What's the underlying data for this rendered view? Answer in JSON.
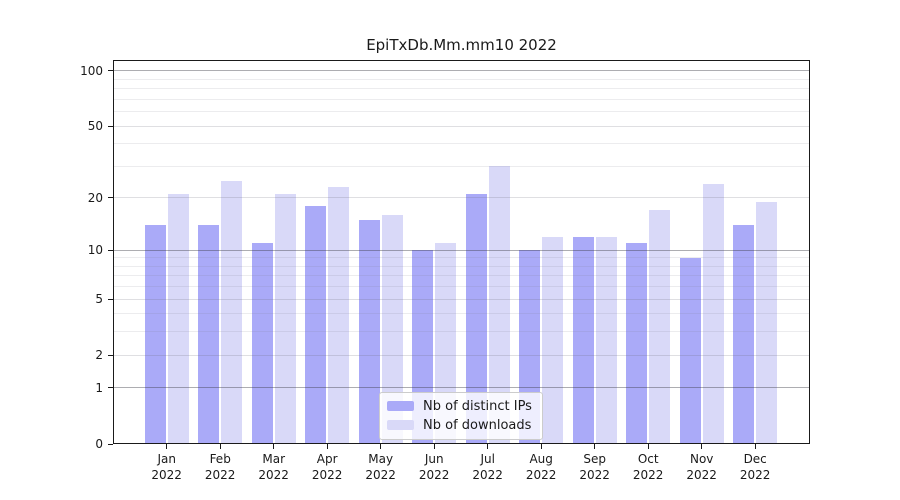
{
  "chart_data": {
    "type": "bar",
    "title": "EpiTxDb.Mm.mm10 2022",
    "year_label": "2022",
    "months": [
      "Jan",
      "Feb",
      "Mar",
      "Apr",
      "May",
      "Jun",
      "Jul",
      "Aug",
      "Sep",
      "Oct",
      "Nov",
      "Dec"
    ],
    "series": [
      {
        "name": "Nb of distinct IPs",
        "color": "#aaaaf8",
        "values": [
          14,
          14,
          11,
          18,
          15,
          10,
          21,
          10,
          12,
          11,
          9,
          14
        ]
      },
      {
        "name": "Nb of downloads",
        "color": "#d9d9f8",
        "values": [
          21,
          25,
          21,
          23,
          16,
          11,
          30,
          12,
          12,
          17,
          24,
          19
        ]
      }
    ],
    "y_axis": {
      "scale": "log10(value+1)",
      "ticks": [
        0,
        1,
        2,
        5,
        10,
        20,
        50,
        100
      ],
      "major_gridlines": [
        1,
        10,
        100
      ],
      "mid_gridlines": [
        2,
        5,
        20,
        50
      ],
      "minor_gridlines": [
        3,
        4,
        6,
        7,
        8,
        9,
        30,
        40,
        60,
        70,
        80,
        90
      ],
      "ylim": [
        0,
        100
      ]
    },
    "legend_position": "bottom-center",
    "grid": "on"
  }
}
